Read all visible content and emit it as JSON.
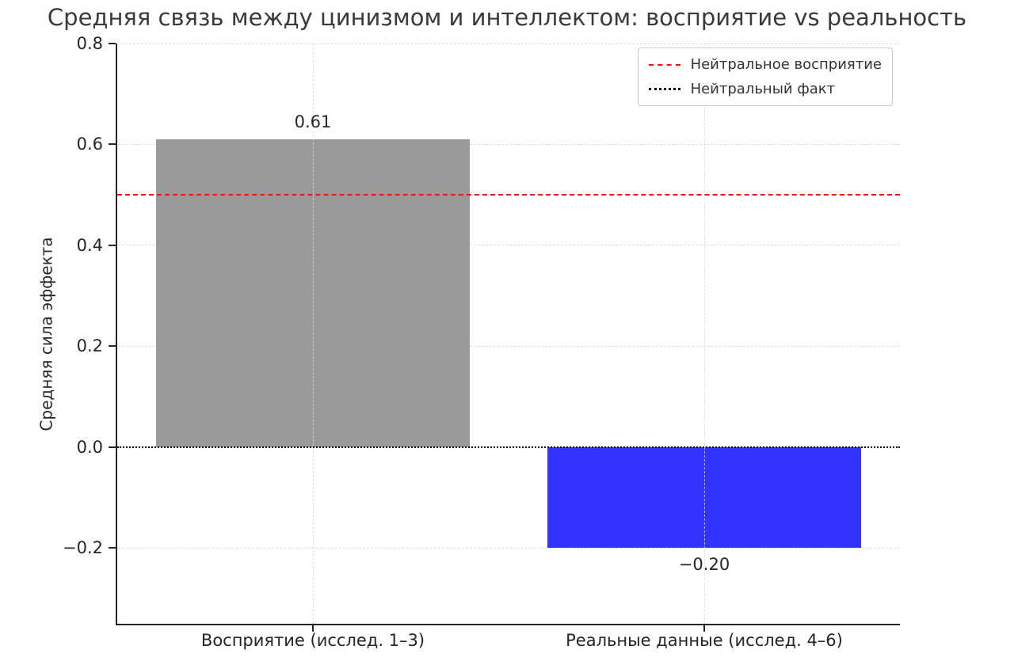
{
  "title": "Средняя связь между цинизмом и интеллектом: восприятие vs реальность",
  "chart_data": {
    "type": "bar",
    "title": "Средняя связь между цинизмом и интеллектом: восприятие vs реальность",
    "xlabel": "",
    "ylabel": "Средняя сила эффекта",
    "categories": [
      "Восприятие (исслед. 1–3)",
      "Реальные данные (исслед. 4–6)"
    ],
    "values": [
      0.61,
      -0.2
    ],
    "value_labels": [
      "0.61",
      "−0.20"
    ],
    "bar_colors": [
      "#9a9a9a",
      "#3333ff"
    ],
    "yticks": [
      0.8,
      0.6,
      0.4,
      0.2,
      0.0,
      -0.2
    ],
    "ytick_labels": [
      "0.8",
      "0.6",
      "0.4",
      "0.2",
      "0.0",
      "−0.2"
    ],
    "ylim": [
      -0.35,
      0.8
    ],
    "grid": true,
    "grid_style": "dashed",
    "legend_position": "upper right",
    "bar_width_fraction": 0.8,
    "reference_lines": [
      {
        "value": 0.5,
        "color": "#ee1111",
        "style": "dashed",
        "label": "Нейтральное восприятие"
      },
      {
        "value": 0.0,
        "color": "#000000",
        "style": "dotted",
        "label": "Нейтральный факт"
      }
    ]
  },
  "legend": {
    "items": [
      {
        "label": "Нейтральное восприятие",
        "color": "#ee1111",
        "style": "dashed"
      },
      {
        "label": "Нейтральный факт",
        "color": "#000000",
        "style": "dotted"
      }
    ]
  },
  "colors": {
    "background": "#ffffff",
    "grid": "#ddddea",
    "spine": "#262626",
    "tick_text": "#262626",
    "title_text": "#3a3a3a",
    "bar_perception": "#9a9a9a",
    "bar_reality": "#3333ff",
    "neutral_perception_line": "#ee1111",
    "neutral_fact_line": "#000000"
  }
}
